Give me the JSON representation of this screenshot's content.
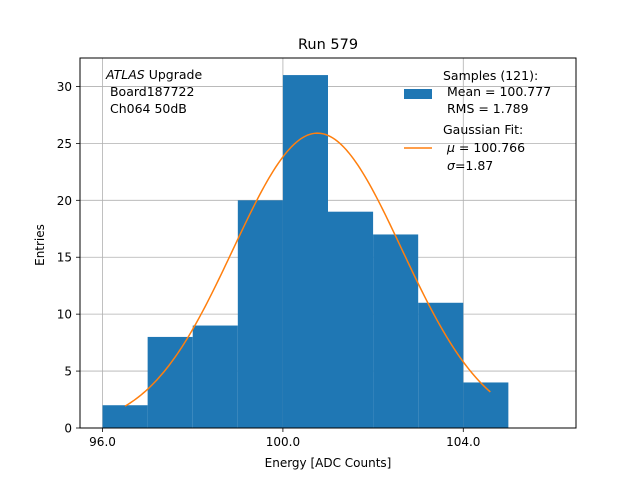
{
  "chart_data": {
    "type": "histogram",
    "title": "Run 579",
    "xlabel": "Energy [ADC Counts]",
    "ylabel": "Entries",
    "xlim": [
      95.5,
      106.5
    ],
    "ylim": [
      0,
      32.5
    ],
    "xticks": [
      96.0,
      100.0,
      104.0
    ],
    "xtick_labels": [
      "96.0",
      "100.0",
      "104.0"
    ],
    "yticks": [
      0,
      5,
      10,
      15,
      20,
      25,
      30
    ],
    "ytick_labels": [
      "0",
      "5",
      "10",
      "15",
      "20",
      "25",
      "30"
    ],
    "grid": true,
    "bins": [
      {
        "x0": 96.0,
        "x1": 97.0,
        "count": 2
      },
      {
        "x0": 97.0,
        "x1": 98.0,
        "count": 8
      },
      {
        "x0": 98.0,
        "x1": 99.0,
        "count": 9
      },
      {
        "x0": 99.0,
        "x1": 100.0,
        "count": 20
      },
      {
        "x0": 100.0,
        "x1": 101.0,
        "count": 31
      },
      {
        "x0": 101.0,
        "x1": 102.0,
        "count": 19
      },
      {
        "x0": 102.0,
        "x1": 103.0,
        "count": 17
      },
      {
        "x0": 103.0,
        "x1": 104.0,
        "count": 11
      },
      {
        "x0": 104.0,
        "x1": 105.0,
        "count": 4
      }
    ],
    "fit": {
      "type": "gaussian",
      "amplitude": 25.9,
      "mu": 100.766,
      "sigma": 1.87,
      "x_range": [
        96.5,
        104.6
      ]
    },
    "annotation": {
      "line1_italic": "ATLAS",
      "line1_rest": " Upgrade",
      "line2": " Board187722",
      "line3": " Ch064 50dB"
    },
    "legend": {
      "position": "top-right",
      "hist_line1": "Samples (121):",
      "hist_line2": " Mean = 100.777",
      "hist_line3": " RMS = 1.789",
      "fit_line1": "Gaussian Fit:",
      "fit_mu": "μ",
      "fit_line2_rest": " = 100.766",
      "fit_sigma": "σ",
      "fit_line3_rest": "=1.87"
    },
    "colors": {
      "bars": "#1f77b4",
      "fit": "#ff7f0e",
      "grid": "#b0b0b0"
    }
  }
}
